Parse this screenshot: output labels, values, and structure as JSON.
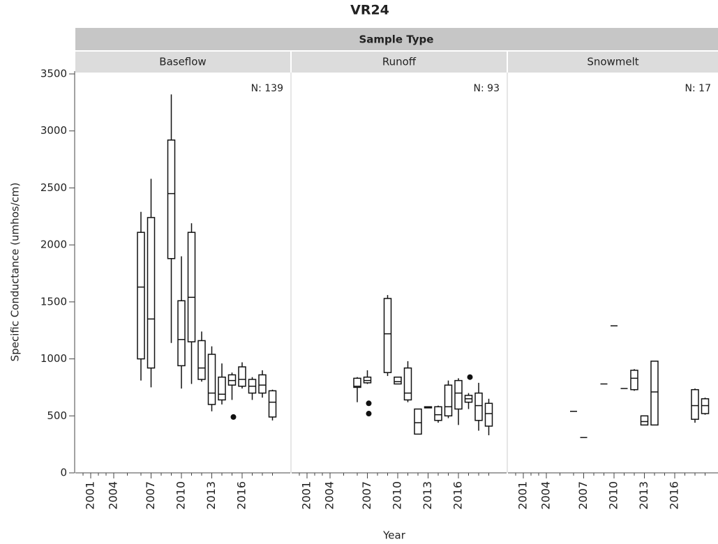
{
  "chart_data": {
    "type": "box",
    "title": "VR24",
    "facet_title": "Sample Type",
    "y_label": "Specific Conductance (umhos/cm)",
    "x_label": "Year",
    "ylim": [
      0,
      3500
    ],
    "yticks": [
      0,
      500,
      1000,
      1500,
      2000,
      2500,
      3000,
      3500
    ],
    "xticks": [
      2001,
      2004,
      2007,
      2010,
      2013,
      2016
    ],
    "panels": [
      {
        "name": "Baseflow",
        "n_label": "N: 139",
        "boxes": [
          {
            "x": 2006,
            "min": 810,
            "q1": 1000,
            "median": 1630,
            "q3": 2110,
            "max": 2290
          },
          {
            "x": 2007,
            "min": 750,
            "q1": 920,
            "median": 1350,
            "q3": 2240,
            "max": 2580
          },
          {
            "x": 2009,
            "min": 1140,
            "q1": 1880,
            "median": 2450,
            "q3": 2920,
            "max": 3320
          },
          {
            "x": 2010,
            "min": 740,
            "q1": 940,
            "median": 1170,
            "q3": 1510,
            "max": 1900
          },
          {
            "x": 2011,
            "min": 780,
            "q1": 1150,
            "median": 1540,
            "q3": 2110,
            "max": 2190
          },
          {
            "x": 2012,
            "min": 800,
            "q1": 820,
            "median": 920,
            "q3": 1160,
            "max": 1240
          },
          {
            "x": 2013,
            "min": 540,
            "q1": 600,
            "median": 700,
            "q3": 1040,
            "max": 1110
          },
          {
            "x": 2014,
            "min": 600,
            "q1": 640,
            "median": 690,
            "q3": 840,
            "max": 960
          },
          {
            "x": 2015,
            "min": 640,
            "q1": 770,
            "median": 810,
            "q3": 860,
            "max": 880
          },
          {
            "x": 2016,
            "min": 740,
            "q1": 760,
            "median": 820,
            "q3": 930,
            "max": 970
          },
          {
            "x": 2017,
            "min": 640,
            "q1": 700,
            "median": 760,
            "q3": 820,
            "max": 840
          },
          {
            "x": 2018,
            "min": 660,
            "q1": 700,
            "median": 770,
            "q3": 860,
            "max": 900
          },
          {
            "x": 2019,
            "min": 460,
            "q1": 490,
            "median": 620,
            "q3": 720,
            "max": 730
          }
        ],
        "outliers": [
          {
            "x": 2015,
            "value": 490
          }
        ]
      },
      {
        "name": "Runoff",
        "n_label": "N: 93",
        "boxes": [
          {
            "x": 2006,
            "min": 620,
            "q1": 750,
            "median": 760,
            "q3": 830,
            "max": 840
          },
          {
            "x": 2007,
            "min": 780,
            "q1": 790,
            "median": 810,
            "q3": 840,
            "max": 900
          },
          {
            "x": 2009,
            "min": 850,
            "q1": 880,
            "median": 1220,
            "q3": 1530,
            "max": 1560
          },
          {
            "x": 2010,
            "min": 780,
            "q1": 780,
            "median": 800,
            "q3": 840,
            "max": 840
          },
          {
            "x": 2011,
            "min": 620,
            "q1": 640,
            "median": 700,
            "q3": 920,
            "max": 980
          },
          {
            "x": 2012,
            "min": 340,
            "q1": 340,
            "median": 440,
            "q3": 560,
            "max": 560
          },
          {
            "x": 2013,
            "min": 570,
            "q1": 570,
            "median": 575,
            "q3": 580,
            "max": 580
          },
          {
            "x": 2014,
            "min": 440,
            "q1": 460,
            "median": 510,
            "q3": 580,
            "max": 590
          },
          {
            "x": 2015,
            "min": 480,
            "q1": 500,
            "median": 580,
            "q3": 770,
            "max": 810
          },
          {
            "x": 2016,
            "min": 420,
            "q1": 560,
            "median": 700,
            "q3": 810,
            "max": 830
          },
          {
            "x": 2017,
            "min": 560,
            "q1": 620,
            "median": 650,
            "q3": 680,
            "max": 700
          },
          {
            "x": 2018,
            "min": 370,
            "q1": 460,
            "median": 590,
            "q3": 700,
            "max": 790
          },
          {
            "x": 2019,
            "min": 330,
            "q1": 410,
            "median": 520,
            "q3": 610,
            "max": 650
          }
        ],
        "outliers": [
          {
            "x": 2007,
            "value": 610
          },
          {
            "x": 2007,
            "value": 520
          },
          {
            "x": 2017,
            "value": 840
          }
        ]
      },
      {
        "name": "Snowmelt",
        "n_label": "N: 17",
        "boxes": [
          {
            "x": 2006,
            "median": 540
          },
          {
            "x": 2007,
            "median": 310
          },
          {
            "x": 2009,
            "median": 780
          },
          {
            "x": 2010,
            "median": 1290
          },
          {
            "x": 2011,
            "median": 740
          },
          {
            "x": 2012,
            "min": 720,
            "q1": 730,
            "median": 830,
            "q3": 900,
            "max": 910
          },
          {
            "x": 2013,
            "min": 420,
            "q1": 420,
            "median": 450,
            "q3": 500,
            "max": 500
          },
          {
            "x": 2014,
            "min": 420,
            "q1": 420,
            "median": 710,
            "q3": 980,
            "max": 980
          },
          {
            "x": 2018,
            "min": 440,
            "q1": 470,
            "median": 590,
            "q3": 730,
            "max": 740
          },
          {
            "x": 2019,
            "min": 510,
            "q1": 520,
            "median": 590,
            "q3": 650,
            "max": 660
          }
        ],
        "outliers": []
      }
    ]
  }
}
